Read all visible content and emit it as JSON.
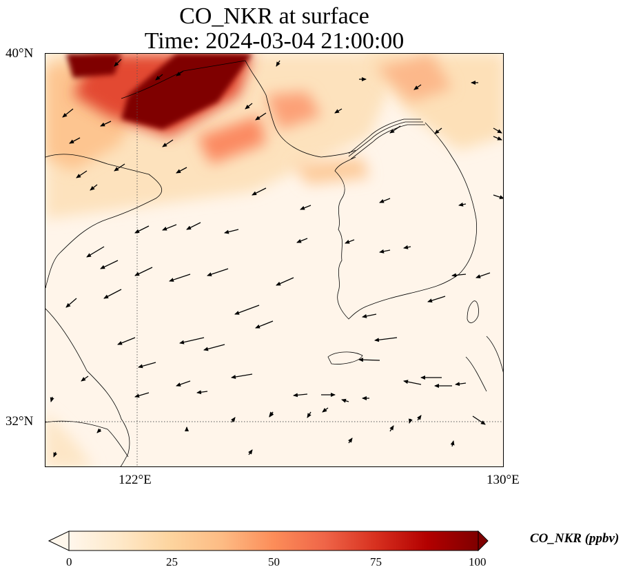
{
  "title": {
    "line1": "CO_NKR at surface",
    "line2": "Time: 2024-03-04 21:00:00"
  },
  "map": {
    "lat_labels": [
      "40°N",
      "32°N"
    ],
    "lon_labels": [
      "122°E",
      "130°E"
    ],
    "gridline_style": "dotted",
    "extent": {
      "lon_min": 120,
      "lon_max": 130,
      "lat_min": 31,
      "lat_max": 40
    },
    "field": "CO_NKR",
    "high_concentration_region": "northwest (Bohai / Liaoning area), values >= 100 ppbv",
    "vectors": "wind arrows, mostly westerly / west-southwesterly flow"
  },
  "colorbar": {
    "label": "CO_NKR (ppbv)",
    "ticks": [
      "0",
      "25",
      "50",
      "75",
      "100"
    ],
    "range": [
      0,
      100
    ],
    "extend": "both",
    "colormap": "OrRd",
    "colors": [
      "#fff7ec",
      "#fee8c8",
      "#fdd49e",
      "#fdbb84",
      "#fc8d59",
      "#ef6548",
      "#d7301f",
      "#b30000",
      "#7f0000"
    ]
  }
}
